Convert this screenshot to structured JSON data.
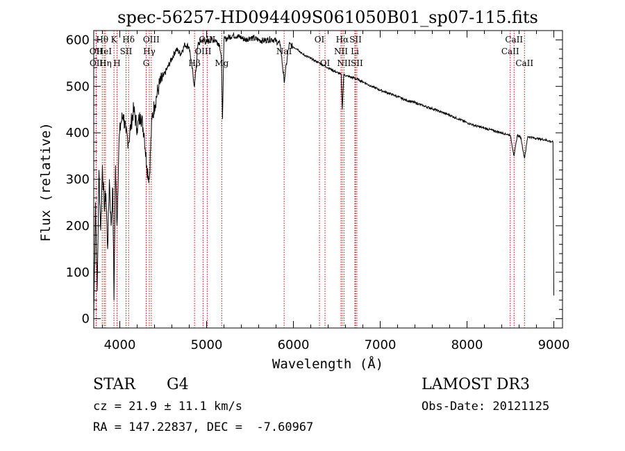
{
  "chart_data": {
    "type": "line",
    "title": "spec-56257-HD094409S061050B01_sp07-115.fits",
    "xlabel": "Wavelength (Å)",
    "ylabel": "Flux (relative)",
    "xlim": [
      3700,
      9100
    ],
    "ylim": [
      -20,
      620
    ],
    "xticks": [
      4000,
      5000,
      6000,
      7000,
      8000,
      9000
    ],
    "yticks": [
      0,
      100,
      200,
      300,
      400,
      500,
      600
    ],
    "grid": false,
    "line_color": "#000000",
    "marker_color": "#cc0000",
    "series": [
      {
        "name": "flux",
        "x": [
          3700,
          3720,
          3740,
          3760,
          3780,
          3800,
          3820,
          3840,
          3860,
          3880,
          3900,
          3920,
          3933,
          3950,
          3968,
          3990,
          4010,
          4040,
          4070,
          4101,
          4130,
          4160,
          4200,
          4240,
          4280,
          4310,
          4340,
          4370,
          4400,
          4450,
          4500,
          4550,
          4600,
          4650,
          4700,
          4750,
          4800,
          4861,
          4900,
          4950,
          5000,
          5050,
          5100,
          5150,
          5170,
          5183,
          5200,
          5250,
          5300,
          5350,
          5400,
          5450,
          5500,
          5550,
          5600,
          5650,
          5700,
          5750,
          5800,
          5850,
          5893,
          5950,
          6000,
          6050,
          6100,
          6150,
          6200,
          6250,
          6300,
          6350,
          6400,
          6450,
          6500,
          6550,
          6563,
          6580,
          6620,
          6700,
          6800,
          6900,
          7000,
          7100,
          7200,
          7300,
          7400,
          7500,
          7600,
          7700,
          7800,
          7900,
          8000,
          8100,
          8200,
          8300,
          8400,
          8498,
          8542,
          8580,
          8620,
          8662,
          8700,
          8800,
          8900,
          8990,
          9000
        ],
        "values": [
          5,
          250,
          60,
          320,
          190,
          330,
          240,
          270,
          150,
          300,
          200,
          280,
          40,
          330,
          200,
          380,
          420,
          440,
          400,
          380,
          420,
          450,
          410,
          440,
          400,
          330,
          300,
          430,
          460,
          500,
          520,
          540,
          560,
          580,
          570,
          590,
          585,
          500,
          590,
          600,
          595,
          600,
          600,
          590,
          560,
          430,
          600,
          605,
          610,
          608,
          605,
          600,
          605,
          603,
          600,
          598,
          600,
          602,
          598,
          590,
          510,
          590,
          585,
          580,
          570,
          565,
          560,
          555,
          550,
          545,
          540,
          535,
          530,
          525,
          450,
          525,
          522,
          518,
          510,
          500,
          492,
          485,
          478,
          470,
          465,
          458,
          452,
          445,
          438,
          430,
          422,
          415,
          410,
          405,
          400,
          395,
          350,
          395,
          390,
          345,
          392,
          388,
          385,
          380,
          50
        ]
      }
    ],
    "line_markers": [
      {
        "label": "Hθ",
        "wavelength": 3798,
        "row": 0
      },
      {
        "label": "OII",
        "wavelength": 3727,
        "row": 1
      },
      {
        "label": "OII",
        "wavelength": 3729,
        "row": 2
      },
      {
        "label": "HeI",
        "wavelength": 3820,
        "row": 1
      },
      {
        "label": "Hη",
        "wavelength": 3835,
        "row": 2
      },
      {
        "label": "K",
        "wavelength": 3933,
        "row": 0
      },
      {
        "label": "SII",
        "wavelength": 4072,
        "row": 1
      },
      {
        "label": "H",
        "wavelength": 3968,
        "row": 2
      },
      {
        "label": "Hδ",
        "wavelength": 4101,
        "row": 0
      },
      {
        "label": "OIII",
        "wavelength": 4363,
        "row": 0
      },
      {
        "label": "Hγ",
        "wavelength": 4340,
        "row": 1
      },
      {
        "label": "G",
        "wavelength": 4304,
        "row": 2
      },
      {
        "label": "OIII",
        "wavelength": 5007,
        "row": 0
      },
      {
        "label": "OIII",
        "wavelength": 4959,
        "row": 1
      },
      {
        "label": "Hβ",
        "wavelength": 4861,
        "row": 2
      },
      {
        "label": "Mg",
        "wavelength": 5175,
        "row": 2
      },
      {
        "label": "NaI",
        "wavelength": 5893,
        "row": 1
      },
      {
        "label": "OI",
        "wavelength": 6300,
        "row": 0
      },
      {
        "label": "OI",
        "wavelength": 6364,
        "row": 2
      },
      {
        "label": "Hα",
        "wavelength": 6563,
        "row": 0
      },
      {
        "label": "SII",
        "wavelength": 6716,
        "row": 0
      },
      {
        "label": "NII",
        "wavelength": 6548,
        "row": 1
      },
      {
        "label": "Li",
        "wavelength": 6708,
        "row": 1
      },
      {
        "label": "NII",
        "wavelength": 6583,
        "row": 2
      },
      {
        "label": "SII",
        "wavelength": 6731,
        "row": 2
      },
      {
        "label": "CaII",
        "wavelength": 8542,
        "row": 0
      },
      {
        "label": "CaII",
        "wavelength": 8498,
        "row": 1
      },
      {
        "label": "CaII",
        "wavelength": 8662,
        "row": 2
      }
    ]
  },
  "info": {
    "class": "STAR",
    "subclass": "G4",
    "survey": "LAMOST DR3",
    "redshift": "cz = 21.9 ± 11.1 km/s",
    "obs_date": "Obs-Date: 20121125",
    "coords": "RA = 147.22837, DEC =  -7.60967"
  }
}
